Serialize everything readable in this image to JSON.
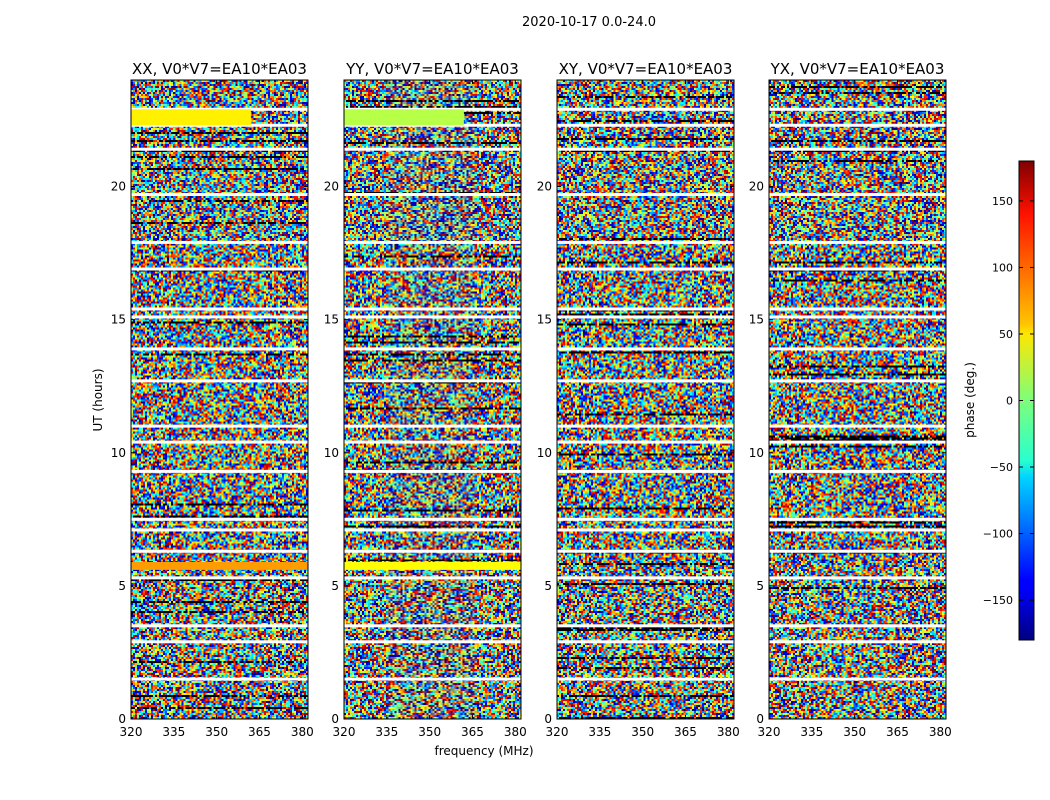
{
  "figure": {
    "suptitle": "2020-10-17 0.0-24.0"
  },
  "chart_data": {
    "type": "heatmap",
    "panels": [
      {
        "id": "xx",
        "title": "XX, V0*V7=EA10*EA03"
      },
      {
        "id": "yy",
        "title": "YY, V0*V7=EA10*EA03"
      },
      {
        "id": "xy",
        "title": "XY, V0*V7=EA10*EA03"
      },
      {
        "id": "yx",
        "title": "YX, V0*V7=EA10*EA03"
      }
    ],
    "xlabel": "frequency (MHz)",
    "ylabel": "UT (hours)",
    "xlim": [
      320,
      382
    ],
    "ylim": [
      0,
      24
    ],
    "xticks": [
      320,
      335,
      350,
      365,
      380
    ],
    "yticks": [
      0,
      5,
      10,
      15,
      20
    ],
    "colorbar": {
      "label": "phase (deg.)",
      "range": [
        -180,
        180
      ],
      "ticks": [
        -150,
        -100,
        -50,
        0,
        50,
        100,
        150
      ],
      "ticklabels": [
        "−150",
        "−100",
        "−50",
        "0",
        "50",
        "100",
        "150"
      ],
      "colormap": "jet"
    },
    "gaps_ut_hours": [
      1.5,
      2.9,
      3.5,
      5.3,
      6.3,
      7.1,
      7.5,
      9.3,
      10.4,
      11.0,
      12.7,
      13.9,
      15.1,
      15.4,
      16.9,
      17.9,
      19.7,
      21.4,
      22.3,
      22.9
    ],
    "solid_bands": [
      {
        "panel": "xx",
        "ut": [
          22.3,
          22.9
        ],
        "freq_end": 362,
        "phase": 50
      },
      {
        "panel": "yy",
        "ut": [
          22.3,
          22.9
        ],
        "freq_end": 362,
        "phase": 20
      },
      {
        "panel": "xx",
        "ut": [
          5.6,
          5.9
        ],
        "freq_end": 382,
        "phase": 80
      },
      {
        "panel": "yy",
        "ut": [
          5.6,
          5.9
        ],
        "freq_end": 382,
        "phase": 45
      }
    ]
  }
}
